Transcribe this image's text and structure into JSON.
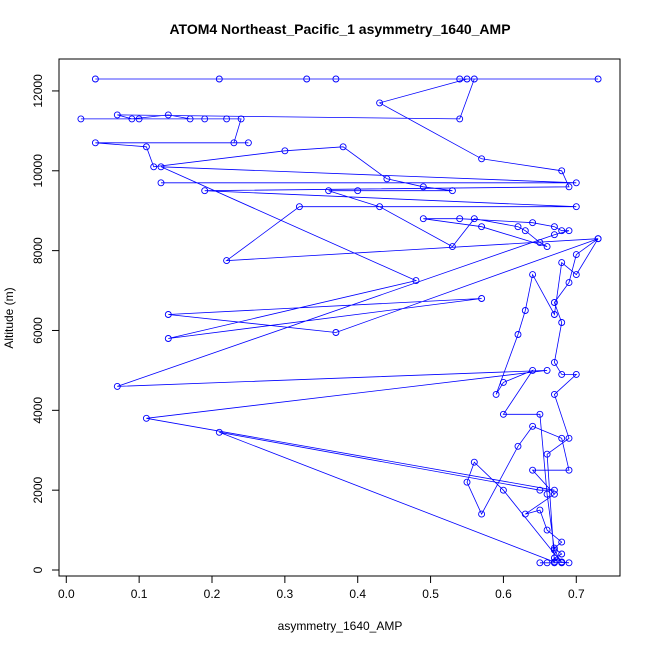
{
  "chart_data": {
    "type": "line",
    "title": "ATOM4 Northeast_Pacific_1 asymmetry_1640_AMP",
    "xlabel": "asymmetry_1640_AMP",
    "ylabel": "Altitude (m)",
    "xlim": [
      -0.01,
      0.76
    ],
    "ylim": [
      -150,
      12800
    ],
    "xticks": [
      0.0,
      0.1,
      0.2,
      0.3,
      0.4,
      0.5,
      0.6,
      0.7
    ],
    "xtick_labels": [
      "0.0",
      "0.1",
      "0.2",
      "0.3",
      "0.4",
      "0.5",
      "0.6",
      "0.7"
    ],
    "yticks": [
      0,
      2000,
      4000,
      6000,
      8000,
      10000,
      12000
    ],
    "ytick_labels": [
      "0",
      "2000",
      "4000",
      "6000",
      "8000",
      "10000",
      "12000"
    ],
    "grid": false,
    "legend": "none",
    "series": [
      {
        "color": "#0000ff",
        "marker": "open-circle",
        "points": [
          [
            0.65,
            180
          ],
          [
            0.66,
            180
          ],
          [
            0.67,
            180
          ],
          [
            0.68,
            190
          ],
          [
            0.69,
            180
          ],
          [
            0.68,
            200
          ],
          [
            0.67,
            300
          ],
          [
            0.68,
            400
          ],
          [
            0.67,
            550
          ],
          [
            0.68,
            700
          ],
          [
            0.66,
            1000
          ],
          [
            0.65,
            1500
          ],
          [
            0.63,
            1400
          ],
          [
            0.67,
            1900
          ],
          [
            0.64,
            2500
          ],
          [
            0.69,
            2500
          ],
          [
            0.68,
            3300
          ],
          [
            0.64,
            3600
          ],
          [
            0.62,
            3100
          ],
          [
            0.57,
            1400
          ],
          [
            0.55,
            2200
          ],
          [
            0.56,
            2700
          ],
          [
            0.6,
            2000
          ],
          [
            0.68,
            180
          ],
          [
            0.67,
            500
          ],
          [
            0.66,
            1900
          ],
          [
            0.65,
            3900
          ],
          [
            0.6,
            3900
          ],
          [
            0.64,
            5000
          ],
          [
            0.6,
            4700
          ],
          [
            0.59,
            4400
          ],
          [
            0.62,
            5900
          ],
          [
            0.63,
            6500
          ],
          [
            0.64,
            7400
          ],
          [
            0.67,
            6400
          ],
          [
            0.68,
            7700
          ],
          [
            0.7,
            7400
          ],
          [
            0.73,
            8300
          ],
          [
            0.7,
            7900
          ],
          [
            0.69,
            7200
          ],
          [
            0.67,
            6700
          ],
          [
            0.68,
            6200
          ],
          [
            0.67,
            5200
          ],
          [
            0.68,
            4900
          ],
          [
            0.7,
            4900
          ],
          [
            0.67,
            4400
          ],
          [
            0.69,
            3300
          ],
          [
            0.66,
            2900
          ],
          [
            0.67,
            200
          ],
          [
            0.21,
            3450
          ],
          [
            0.65,
            2000
          ],
          [
            0.67,
            2000
          ],
          [
            0.11,
            3800
          ],
          [
            0.66,
            5000
          ],
          [
            0.07,
            4600
          ],
          [
            0.67,
            8400
          ],
          [
            0.69,
            8500
          ],
          [
            0.68,
            8500
          ],
          [
            0.67,
            8600
          ],
          [
            0.64,
            8700
          ],
          [
            0.54,
            8800
          ],
          [
            0.49,
            8800
          ],
          [
            0.57,
            8600
          ],
          [
            0.66,
            8100
          ],
          [
            0.65,
            8200
          ],
          [
            0.63,
            8500
          ],
          [
            0.62,
            8600
          ],
          [
            0.56,
            8800
          ],
          [
            0.53,
            8100
          ],
          [
            0.43,
            9100
          ],
          [
            0.36,
            9500
          ],
          [
            0.4,
            9500
          ],
          [
            0.53,
            9500
          ],
          [
            0.49,
            9600
          ],
          [
            0.44,
            9800
          ],
          [
            0.38,
            10600
          ],
          [
            0.3,
            10500
          ],
          [
            0.12,
            10100
          ],
          [
            0.11,
            10600
          ],
          [
            0.04,
            10700
          ],
          [
            0.25,
            10700
          ],
          [
            0.23,
            10700
          ],
          [
            0.24,
            11300
          ],
          [
            0.1,
            11300
          ],
          [
            0.02,
            11300
          ],
          [
            0.22,
            11300
          ],
          [
            0.19,
            11300
          ],
          [
            0.17,
            11300
          ],
          [
            0.14,
            11400
          ],
          [
            0.09,
            11300
          ],
          [
            0.07,
            11400
          ],
          [
            0.54,
            11300
          ],
          [
            0.56,
            12300
          ],
          [
            0.73,
            12300
          ],
          [
            0.04,
            12300
          ],
          [
            0.21,
            12300
          ],
          [
            0.33,
            12300
          ],
          [
            0.37,
            12300
          ],
          [
            0.54,
            12300
          ],
          [
            0.55,
            12300
          ],
          [
            0.43,
            11700
          ],
          [
            0.57,
            10300
          ],
          [
            0.68,
            10000
          ],
          [
            0.69,
            9600
          ],
          [
            0.19,
            9500
          ],
          [
            0.7,
            9100
          ],
          [
            0.32,
            9100
          ],
          [
            0.22,
            7750
          ],
          [
            0.73,
            8300
          ],
          [
            0.37,
            5950
          ],
          [
            0.14,
            6400
          ],
          [
            0.57,
            6800
          ],
          [
            0.14,
            5800
          ],
          [
            0.48,
            7250
          ],
          [
            0.13,
            10100
          ],
          [
            0.7,
            9700
          ],
          [
            0.13,
            9700
          ]
        ]
      }
    ]
  }
}
